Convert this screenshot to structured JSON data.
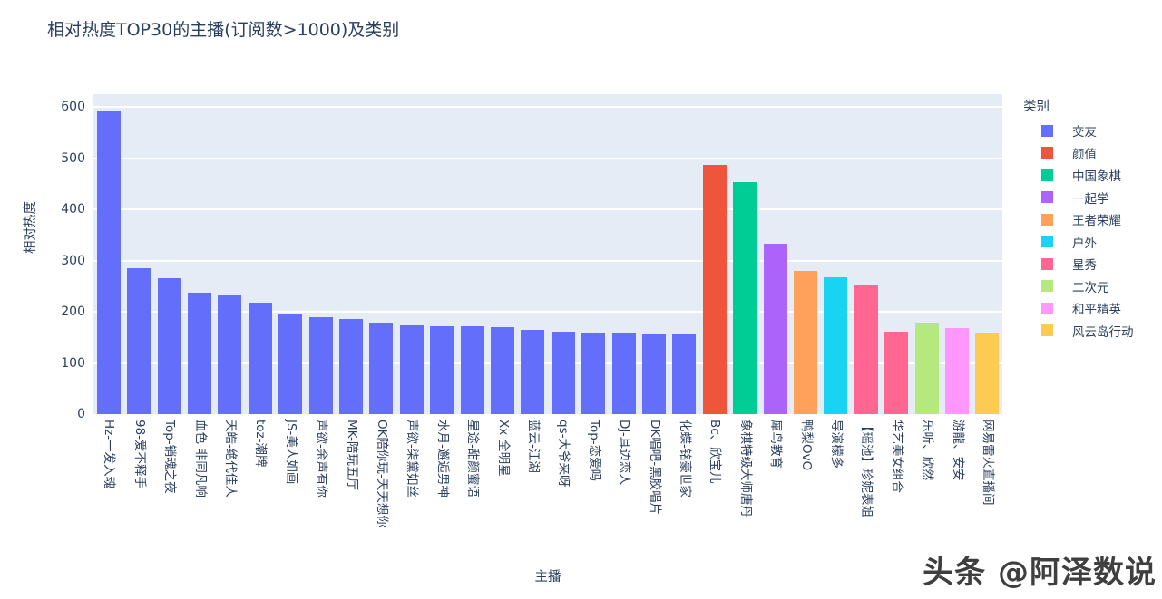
{
  "title": "相对热度TOP30的主播(订阅数>1000)及类别",
  "watermark": "头条 @阿泽数说",
  "colors": {
    "plot_background": "#e5ecf6",
    "grid": "#ffffff",
    "text": "#2a3f5f",
    "page_background": "#ffffff"
  },
  "chart_data": {
    "type": "bar",
    "title": "相对热度TOP30的主播(订阅数>1000)及类别",
    "xlabel": "主播",
    "ylabel": "相对热度",
    "ylim": [
      0,
      625
    ],
    "yticks": [
      0,
      100,
      200,
      300,
      400,
      500,
      600
    ],
    "grid": true,
    "legend_title": "类别",
    "legend_position": "right",
    "categories": [
      "Hz-一发入魂",
      "98-爱不释手",
      "Top-销魂之夜",
      "血色-非同凡响",
      "天皓-绝代佳人",
      "toz-潮牌",
      "JS-美人如画",
      "声欲-余声有你",
      "MK-陪玩五厅",
      "OK陪你玩-天天想你",
      "声欲-柒黛如丝",
      "水月-邂逅男神",
      "星途-甜颜蜜语",
      "Xx-全明星",
      "蓝云-江湖",
      "qs-大爷来呀",
      "Top-恋爱吗",
      "DJ-耳边恋人",
      "DK唱吧-黑胶唱片",
      "化蝶-铭豪世家",
      "Bc、欣宝儿",
      "象棋特级大师唐丹",
      "犀鸟教育",
      "鸭梨OvO",
      "导演檬多",
      "【瑶池】珍妮表姐",
      "华艺美女组合",
      "乐听、欣然",
      "游龍、安安",
      "网易雷火直播间"
    ],
    "values": [
      593,
      285,
      266,
      237,
      232,
      217,
      195,
      190,
      186,
      178,
      174,
      172,
      171,
      170,
      165,
      162,
      158,
      157,
      156,
      155,
      487,
      453,
      332,
      280,
      267,
      252,
      161,
      178,
      168,
      158
    ],
    "bar_categories": [
      "交友",
      "交友",
      "交友",
      "交友",
      "交友",
      "交友",
      "交友",
      "交友",
      "交友",
      "交友",
      "交友",
      "交友",
      "交友",
      "交友",
      "交友",
      "交友",
      "交友",
      "交友",
      "交友",
      "交友",
      "颜值",
      "中国象棋",
      "一起学",
      "王者荣耀",
      "户外",
      "星秀",
      "星秀",
      "二次元",
      "和平精英",
      "风云岛行动"
    ],
    "legend": [
      {
        "label": "交友",
        "color": "#636efa"
      },
      {
        "label": "颜值",
        "color": "#ef553b"
      },
      {
        "label": "中国象棋",
        "color": "#00cc96"
      },
      {
        "label": "一起学",
        "color": "#ab63fa"
      },
      {
        "label": "王者荣耀",
        "color": "#ffa15a"
      },
      {
        "label": "户外",
        "color": "#19d3f3"
      },
      {
        "label": "星秀",
        "color": "#ff6692"
      },
      {
        "label": "二次元",
        "color": "#b6e880"
      },
      {
        "label": "和平精英",
        "color": "#ff97ff"
      },
      {
        "label": "风云岛行动",
        "color": "#fecb52"
      }
    ]
  }
}
